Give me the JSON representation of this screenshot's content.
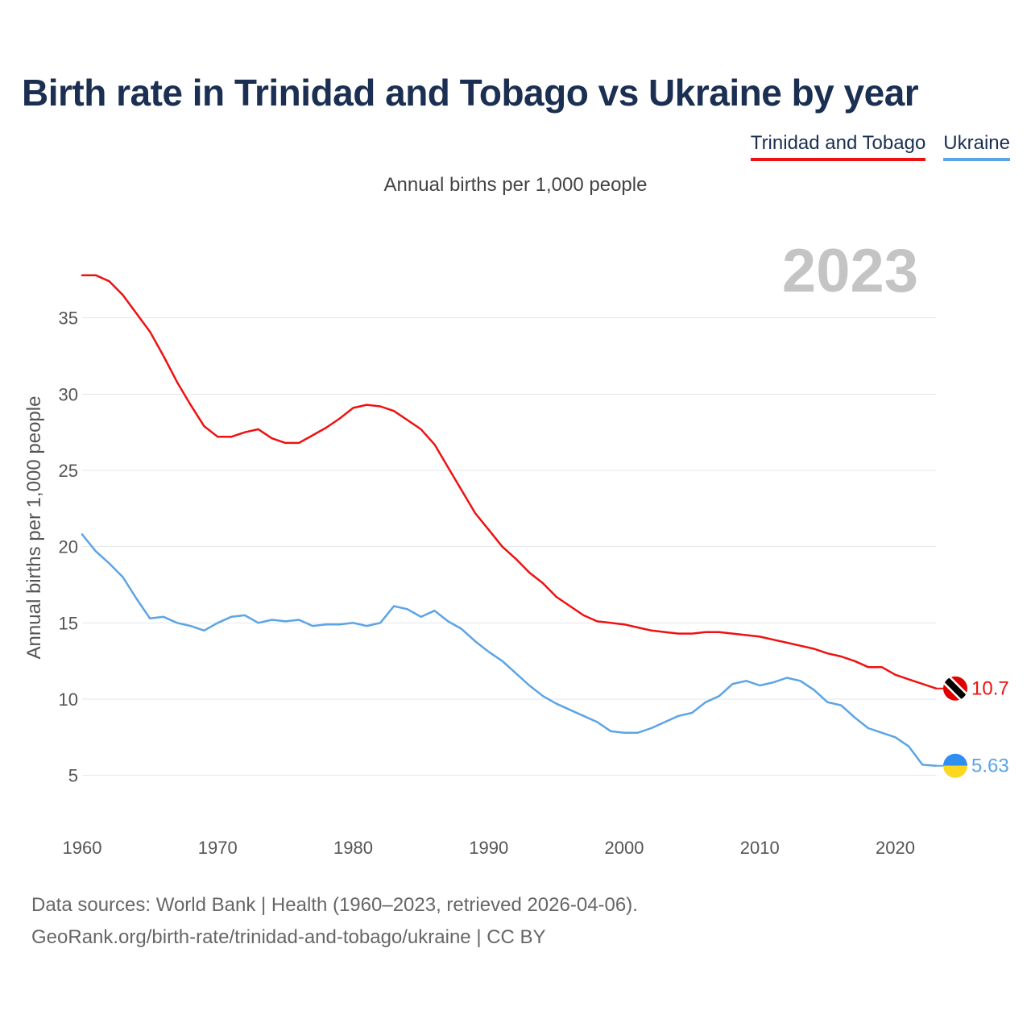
{
  "title": "Birth rate in Trinidad and Tobago vs Ukraine by year",
  "subtitle": "Annual births per 1,000 people",
  "legend": [
    {
      "label": "Trinidad and Tobago",
      "color": "#ee1111"
    },
    {
      "label": "Ukraine",
      "color": "#5ba4e6"
    }
  ],
  "footer": {
    "line1": "Data sources: World Bank | Health (1960–2023, retrieved 2026-04-06).",
    "line2": "GeoRank.org/birth-rate/trinidad-and-tobago/ukraine | CC BY"
  },
  "chart_data": {
    "type": "line",
    "title": "Birth rate in Trinidad and Tobago vs Ukraine by year",
    "ylabel": "Annual births per 1,000 people",
    "xlabel": "",
    "year_label": "2023",
    "xlim": [
      1960,
      2023
    ],
    "ylim": [
      2.5,
      40
    ],
    "x_ticks": [
      1960,
      1970,
      1980,
      1990,
      2000,
      2010,
      2020
    ],
    "y_ticks": [
      5,
      10,
      15,
      20,
      25,
      30,
      35
    ],
    "grid": true,
    "x": [
      1960,
      1961,
      1962,
      1963,
      1964,
      1965,
      1966,
      1967,
      1968,
      1969,
      1970,
      1971,
      1972,
      1973,
      1974,
      1975,
      1976,
      1977,
      1978,
      1979,
      1980,
      1981,
      1982,
      1983,
      1984,
      1985,
      1986,
      1987,
      1988,
      1989,
      1990,
      1991,
      1992,
      1993,
      1994,
      1995,
      1996,
      1997,
      1998,
      1999,
      2000,
      2001,
      2002,
      2003,
      2004,
      2005,
      2006,
      2007,
      2008,
      2009,
      2010,
      2011,
      2012,
      2013,
      2014,
      2015,
      2016,
      2017,
      2018,
      2019,
      2020,
      2021,
      2022,
      2023
    ],
    "series": [
      {
        "name": "Trinidad and Tobago",
        "color": "#ee1111",
        "end_label": "10.7",
        "flag": "trinidad-and-tobago-flag-icon",
        "values": [
          37.8,
          37.8,
          37.4,
          36.5,
          35.3,
          34.1,
          32.5,
          30.8,
          29.3,
          27.9,
          27.2,
          27.2,
          27.5,
          27.7,
          27.1,
          26.8,
          26.8,
          27.3,
          27.8,
          28.4,
          29.1,
          29.3,
          29.2,
          28.9,
          28.3,
          27.7,
          26.7,
          25.2,
          23.7,
          22.2,
          21.1,
          20.0,
          19.2,
          18.3,
          17.6,
          16.7,
          16.1,
          15.5,
          15.1,
          15.0,
          14.9,
          14.7,
          14.5,
          14.4,
          14.3,
          14.3,
          14.4,
          14.4,
          14.3,
          14.2,
          14.1,
          13.9,
          13.7,
          13.5,
          13.3,
          13.0,
          12.8,
          12.5,
          12.1,
          12.1,
          11.6,
          11.3,
          11.0,
          10.7
        ]
      },
      {
        "name": "Ukraine",
        "color": "#5ba4e6",
        "end_label": "5.63",
        "flag": "ukraine-flag-icon",
        "values": [
          20.8,
          19.7,
          18.9,
          18.0,
          16.6,
          15.3,
          15.4,
          15.0,
          14.8,
          14.5,
          15.0,
          15.4,
          15.5,
          15.0,
          15.2,
          15.1,
          15.2,
          14.8,
          14.9,
          14.9,
          15.0,
          14.8,
          15.0,
          16.1,
          15.9,
          15.4,
          15.8,
          15.1,
          14.6,
          13.8,
          13.1,
          12.5,
          11.7,
          10.9,
          10.2,
          9.7,
          9.3,
          8.9,
          8.5,
          7.9,
          7.8,
          7.8,
          8.1,
          8.5,
          8.9,
          9.1,
          9.8,
          10.2,
          11.0,
          11.2,
          10.9,
          11.1,
          11.4,
          11.2,
          10.6,
          9.8,
          9.6,
          8.8,
          8.1,
          7.8,
          7.5,
          6.9,
          5.7,
          5.63
        ]
      }
    ]
  }
}
